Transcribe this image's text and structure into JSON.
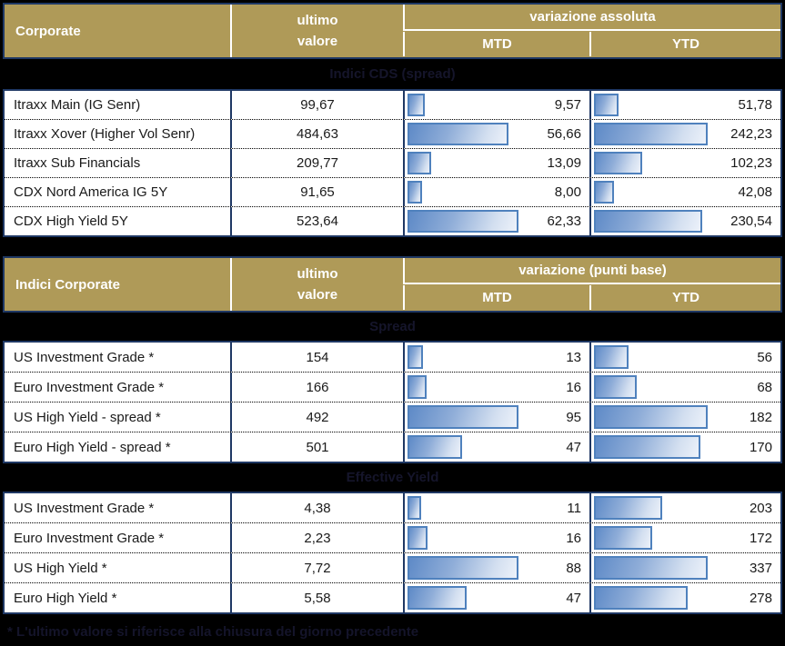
{
  "colors": {
    "gold_header": "#AF9A58",
    "navy_border": "#1F3864",
    "bar_border": "#4F81BD",
    "bar_fill_start": "#5E8AC7",
    "bar_fill_end": "#EDF2FA",
    "band_background": "#000000"
  },
  "table1": {
    "title": "Corporate",
    "value_col_line1": "ultimo",
    "value_col_line2": "valore",
    "group_header": "variazione assoluta",
    "mtd_header": "MTD",
    "ytd_header": "YTD",
    "section": "Indici CDS (spread)",
    "mtd_max": 62.33,
    "ytd_max": 242.23,
    "rows": [
      {
        "label": "Itraxx Main (IG Senr)",
        "value": "99,67",
        "mtd": "9,57",
        "mtd_v": 9.57,
        "ytd": "51,78",
        "ytd_v": 51.78
      },
      {
        "label": "Itraxx Xover (Higher Vol Senr)",
        "value": "484,63",
        "mtd": "56,66",
        "mtd_v": 56.66,
        "ytd": "242,23",
        "ytd_v": 242.23
      },
      {
        "label": "Itraxx Sub Financials",
        "value": "209,77",
        "mtd": "13,09",
        "mtd_v": 13.09,
        "ytd": "102,23",
        "ytd_v": 102.23
      },
      {
        "label": "CDX Nord America IG 5Y",
        "value": "91,65",
        "mtd": "8,00",
        "mtd_v": 8.0,
        "ytd": "42,08",
        "ytd_v": 42.08
      },
      {
        "label": "CDX High Yield 5Y",
        "value": "523,64",
        "mtd": "62,33",
        "mtd_v": 62.33,
        "ytd": "230,54",
        "ytd_v": 230.54
      }
    ]
  },
  "table2": {
    "title": "Indici Corporate",
    "value_col_line1": "ultimo",
    "value_col_line2": "valore",
    "group_header": "variazione (punti base)",
    "mtd_header": "MTD",
    "ytd_header": "YTD",
    "spread": {
      "section": "Spread",
      "mtd_max": 95,
      "ytd_max": 182,
      "rows": [
        {
          "label": "US Investment Grade *",
          "value": "154",
          "mtd": "13",
          "mtd_v": 13,
          "ytd": "56",
          "ytd_v": 56
        },
        {
          "label": "Euro Investment Grade *",
          "value": "166",
          "mtd": "16",
          "mtd_v": 16,
          "ytd": "68",
          "ytd_v": 68
        },
        {
          "label": "US High Yield  - spread *",
          "value": "492",
          "mtd": "95",
          "mtd_v": 95,
          "ytd": "182",
          "ytd_v": 182
        },
        {
          "label": "Euro High Yield  - spread *",
          "value": "501",
          "mtd": "47",
          "mtd_v": 47,
          "ytd": "170",
          "ytd_v": 170
        }
      ]
    },
    "yield": {
      "section": "Effective Yield",
      "mtd_max": 88,
      "ytd_max": 337,
      "rows": [
        {
          "label": "US Investment Grade *",
          "value": "4,38",
          "mtd": "11",
          "mtd_v": 11,
          "ytd": "203",
          "ytd_v": 203
        },
        {
          "label": "Euro Investment Grade *",
          "value": "2,23",
          "mtd": "16",
          "mtd_v": 16,
          "ytd": "172",
          "ytd_v": 172
        },
        {
          "label": "US High Yield *",
          "value": "7,72",
          "mtd": "88",
          "mtd_v": 88,
          "ytd": "337",
          "ytd_v": 337
        },
        {
          "label": "Euro High Yield *",
          "value": "5,58",
          "mtd": "47",
          "mtd_v": 47,
          "ytd": "278",
          "ytd_v": 278
        }
      ]
    }
  },
  "footnote": "* L'ultimo valore si riferisce alla chiusura del giorno precedente"
}
